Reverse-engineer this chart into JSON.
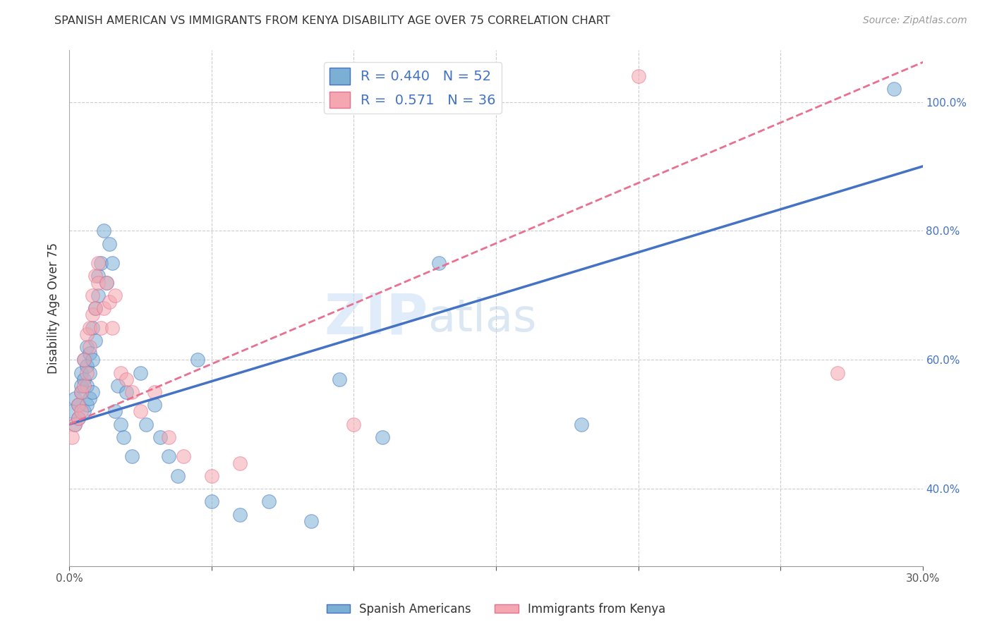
{
  "title": "SPANISH AMERICAN VS IMMIGRANTS FROM KENYA DISABILITY AGE OVER 75 CORRELATION CHART",
  "source": "Source: ZipAtlas.com",
  "xlabel": "",
  "ylabel": "Disability Age Over 75",
  "xlim": [
    0.0,
    0.3
  ],
  "ylim": [
    0.28,
    1.08
  ],
  "xticks": [
    0.0,
    0.05,
    0.1,
    0.15,
    0.2,
    0.25,
    0.3
  ],
  "xticklabels": [
    "0.0%",
    "",
    "",
    "",
    "",
    "",
    "30.0%"
  ],
  "visible_yticks": [
    0.4,
    0.6,
    0.8,
    1.0
  ],
  "visible_ylabels": [
    "40.0%",
    "60.0%",
    "80.0%",
    "100.0%"
  ],
  "R_blue": 0.44,
  "N_blue": 52,
  "R_pink": 0.571,
  "N_pink": 36,
  "blue_color": "#7BAFD4",
  "pink_color": "#F4A7B0",
  "blue_line_color": "#4472C4",
  "pink_line_color": "#E87090",
  "legend_blue_label": "Spanish Americans",
  "legend_pink_label": "Immigrants from Kenya",
  "watermark_zip": "ZIP",
  "watermark_atlas": "atlas",
  "blue_line_x0": 0.0,
  "blue_line_y0": 0.5,
  "blue_line_x1": 0.3,
  "blue_line_y1": 0.9,
  "pink_line_x0": 0.0,
  "pink_line_y0": 0.5,
  "pink_line_x1": 0.3,
  "pink_line_y1": 1.04,
  "blue_scatter_x": [
    0.001,
    0.002,
    0.002,
    0.003,
    0.003,
    0.004,
    0.004,
    0.004,
    0.005,
    0.005,
    0.005,
    0.006,
    0.006,
    0.006,
    0.006,
    0.007,
    0.007,
    0.007,
    0.008,
    0.008,
    0.008,
    0.009,
    0.009,
    0.01,
    0.01,
    0.011,
    0.012,
    0.013,
    0.014,
    0.015,
    0.016,
    0.017,
    0.018,
    0.019,
    0.02,
    0.022,
    0.025,
    0.027,
    0.03,
    0.032,
    0.035,
    0.038,
    0.045,
    0.05,
    0.06,
    0.07,
    0.085,
    0.095,
    0.11,
    0.13,
    0.18,
    0.29
  ],
  "blue_scatter_y": [
    0.52,
    0.5,
    0.54,
    0.51,
    0.53,
    0.55,
    0.56,
    0.58,
    0.52,
    0.57,
    0.6,
    0.53,
    0.56,
    0.59,
    0.62,
    0.54,
    0.58,
    0.61,
    0.55,
    0.6,
    0.65,
    0.63,
    0.68,
    0.7,
    0.73,
    0.75,
    0.8,
    0.72,
    0.78,
    0.75,
    0.52,
    0.56,
    0.5,
    0.48,
    0.55,
    0.45,
    0.58,
    0.5,
    0.53,
    0.48,
    0.45,
    0.42,
    0.6,
    0.38,
    0.36,
    0.38,
    0.35,
    0.57,
    0.48,
    0.75,
    0.5,
    1.02
  ],
  "pink_scatter_x": [
    0.001,
    0.002,
    0.003,
    0.003,
    0.004,
    0.004,
    0.005,
    0.005,
    0.006,
    0.006,
    0.007,
    0.007,
    0.008,
    0.008,
    0.009,
    0.009,
    0.01,
    0.01,
    0.011,
    0.012,
    0.013,
    0.014,
    0.015,
    0.016,
    0.018,
    0.02,
    0.022,
    0.025,
    0.03,
    0.035,
    0.04,
    0.05,
    0.06,
    0.1,
    0.2,
    0.27
  ],
  "pink_scatter_y": [
    0.48,
    0.5,
    0.51,
    0.53,
    0.52,
    0.55,
    0.56,
    0.6,
    0.58,
    0.64,
    0.62,
    0.65,
    0.67,
    0.7,
    0.68,
    0.73,
    0.72,
    0.75,
    0.65,
    0.68,
    0.72,
    0.69,
    0.65,
    0.7,
    0.58,
    0.57,
    0.55,
    0.52,
    0.55,
    0.48,
    0.45,
    0.42,
    0.44,
    0.5,
    1.04,
    0.58
  ]
}
